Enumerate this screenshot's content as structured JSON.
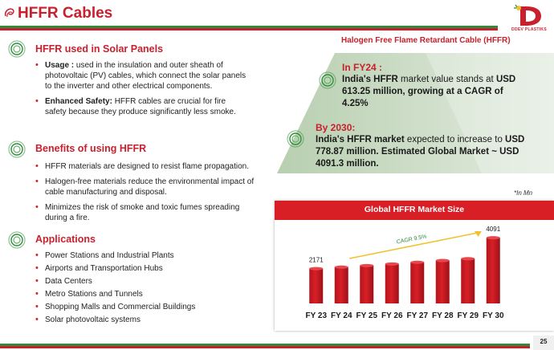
{
  "header": {
    "title": "HFFR Cables",
    "logo_text": "DDEV PLASTIKS",
    "page_number": "25"
  },
  "sections": {
    "solar": {
      "title": "HFFR used in Solar Panels",
      "items": [
        {
          "bold": "Usage :",
          "text": " used in the insulation and outer sheath of photovoltaic (PV) cables, which connect the solar panels to the inverter and other electrical components."
        },
        {
          "bold": "Enhanced Safety:",
          "text": " HFFR cables are crucial for fire safety because they produce significantly less smoke."
        }
      ]
    },
    "benefits": {
      "title": "Benefits of using HFFR",
      "items": [
        "HFFR materials are designed to resist flame propagation.",
        "Halogen-free materials reduce the environmental impact of cable manufacturing and disposal.",
        "Minimizes the risk of smoke and toxic fumes spreading during a fire."
      ]
    },
    "applications": {
      "title": "Applications",
      "items": [
        "Power Stations and Industrial Plants",
        "Airports and Transportation Hubs",
        "Data Centers",
        "Metro Stations and Tunnels",
        "Shopping Malls and Commercial Buildings",
        "Solar photovoltaic systems"
      ]
    }
  },
  "right": {
    "hffr_header": "Halogen Free Flame Retardant Cable (HFFR)",
    "fy24": {
      "label": "In FY24 :",
      "line1a": "India's ",
      "line1b": "HFFR",
      "line1c": " market value stands at ",
      "line1d": "USD",
      "line2": "613.25 million, growing at a CAGR of",
      "line3": "4.25%"
    },
    "y2030": {
      "label": "By 2030:",
      "line1a": "India's HFFR market",
      "line1b": " expected to increase to ",
      "line1c": "USD",
      "line2": "778.87 million. Estimated Global Market ~ USD",
      "line3": "4091.3 million."
    },
    "unit_note": "*In Mn"
  },
  "chart_data": {
    "type": "bar",
    "title": "Global HFFR Market Size",
    "categories": [
      "FY 23",
      "FY 24",
      "FY 25",
      "FY 26",
      "FY 27",
      "FY 28",
      "FY 29",
      "FY 30"
    ],
    "values": [
      2171,
      2263,
      2359,
      2459,
      2563,
      2672,
      2785,
      4091
    ],
    "data_labels": [
      {
        "index": 0,
        "text": "2171"
      },
      {
        "index": 7,
        "text": "4091"
      }
    ],
    "annotation": "CAGR 9.5%",
    "bar_color": "#d81f26",
    "ylim": [
      0,
      4600
    ]
  },
  "colors": {
    "brand_red": "#c8202d",
    "chart_red": "#d81f26",
    "panel_green": "#c4d7bd",
    "accent_green": "#2e8b3e",
    "cagr_arrow": "#f2c12e"
  }
}
